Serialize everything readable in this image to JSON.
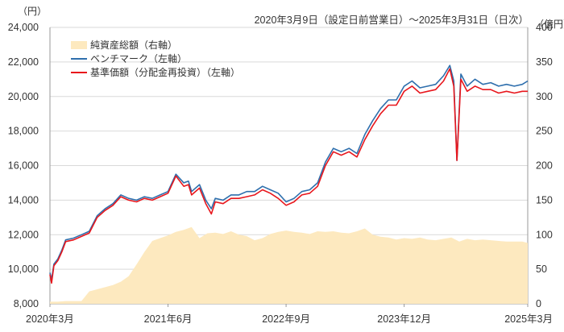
{
  "chart_data": {
    "type": "line",
    "title": "",
    "period_label": "2020年3月9日（設定日前営業日）～2025年3月31日（日次）",
    "left_axis": {
      "unit": "（円）",
      "ylim": [
        8000,
        24000
      ],
      "ticks": [
        8000,
        10000,
        12000,
        14000,
        16000,
        18000,
        20000,
        22000,
        24000
      ],
      "tick_labels": [
        "8,000",
        "10,000",
        "12,000",
        "14,000",
        "16,000",
        "18,000",
        "20,000",
        "22,000",
        "24,000"
      ]
    },
    "right_axis": {
      "unit": "（億円）",
      "ylim": [
        0,
        400
      ],
      "ticks": [
        0,
        50,
        100,
        150,
        200,
        250,
        300,
        350,
        400
      ],
      "tick_labels": [
        "0",
        "50",
        "100",
        "150",
        "200",
        "250",
        "300",
        "350",
        "400"
      ]
    },
    "x_ticks": [
      "2020年3月",
      "2021年6月",
      "2022年9月",
      "2023年12月",
      "2025年3月"
    ],
    "x_tick_positions": [
      0,
      15,
      30,
      45,
      60.7
    ],
    "xlim": [
      0,
      60.7
    ],
    "grid": true,
    "legend_position": "top-left",
    "series": [
      {
        "name": "純資産総額（右軸）",
        "kind": "area",
        "axis": "right",
        "color": "#fde9bf",
        "x": [
          0,
          1,
          2,
          3,
          4,
          5,
          6,
          7,
          8,
          9,
          10,
          11,
          12,
          13,
          14,
          15,
          16,
          17,
          18,
          19,
          20,
          21,
          22,
          23,
          24,
          25,
          26,
          27,
          28,
          29,
          30,
          31,
          32,
          33,
          34,
          35,
          36,
          37,
          38,
          39,
          40,
          41,
          42,
          43,
          44,
          45,
          46,
          47,
          48,
          49,
          50,
          51,
          52,
          53,
          54,
          55,
          56,
          57,
          58,
          59,
          60,
          60.7
        ],
        "values": [
          3,
          3,
          4,
          4,
          4,
          18,
          21,
          24,
          27,
          32,
          40,
          57,
          75,
          91,
          95,
          99,
          104,
          107,
          111,
          95,
          102,
          103,
          101,
          105,
          100,
          98,
          92,
          95,
          101,
          104,
          106,
          104,
          103,
          101,
          105,
          104,
          105,
          103,
          102,
          105,
          109,
          100,
          97,
          96,
          93,
          95,
          94,
          96,
          93,
          92,
          94,
          96,
          90,
          94,
          92,
          93,
          92,
          91,
          90,
          90,
          90,
          88
        ]
      },
      {
        "name": "ベンチマーク（左軸）",
        "kind": "line",
        "axis": "left",
        "color": "#2e6fad",
        "x": [
          0,
          0.2,
          0.5,
          1,
          1.5,
          2,
          3,
          4,
          5,
          6,
          7,
          8,
          9,
          10,
          11,
          12,
          13,
          14,
          15,
          16,
          17,
          17.6,
          18,
          19,
          19.8,
          20.5,
          21,
          22,
          23,
          24,
          25,
          26,
          27,
          28,
          29,
          30,
          31,
          32,
          33,
          34,
          35,
          36,
          37,
          38,
          39,
          40,
          41,
          42,
          43,
          44,
          45,
          46,
          47,
          48,
          49,
          50,
          50.8,
          51.3,
          51.7,
          52.2,
          53,
          54,
          55,
          56,
          57,
          58,
          59,
          60,
          60.7
        ],
        "values": [
          9800,
          9400,
          10300,
          10600,
          11100,
          11700,
          11800,
          12000,
          12200,
          13100,
          13500,
          13800,
          14300,
          14100,
          14000,
          14200,
          14100,
          14300,
          14500,
          15500,
          15000,
          15100,
          14500,
          14900,
          14000,
          13500,
          14100,
          14000,
          14300,
          14300,
          14500,
          14500,
          14800,
          14600,
          14400,
          13900,
          14100,
          14500,
          14600,
          15000,
          16200,
          17000,
          16800,
          17000,
          16700,
          17800,
          18600,
          19300,
          19800,
          19800,
          20600,
          20900,
          20500,
          20600,
          20700,
          21200,
          21800,
          20900,
          16300,
          21300,
          20600,
          21000,
          20700,
          20800,
          20600,
          20700,
          20600,
          20700,
          20900
        ]
      },
      {
        "name": "基準価額（分配金再投資）（左軸）",
        "kind": "line",
        "axis": "left",
        "color": "#e8161c",
        "x": [
          0,
          0.2,
          0.5,
          1,
          1.5,
          2,
          3,
          4,
          5,
          6,
          7,
          8,
          9,
          10,
          11,
          12,
          13,
          14,
          15,
          16,
          17,
          17.6,
          18,
          19,
          19.8,
          20.5,
          21,
          22,
          23,
          24,
          25,
          26,
          27,
          28,
          29,
          30,
          31,
          32,
          33,
          34,
          35,
          36,
          37,
          38,
          39,
          40,
          41,
          42,
          43,
          44,
          45,
          46,
          47,
          48,
          49,
          50,
          50.8,
          51.3,
          51.7,
          52.2,
          53,
          54,
          55,
          56,
          57,
          58,
          59,
          60,
          60.7
        ],
        "values": [
          9700,
          9200,
          10200,
          10500,
          11000,
          11600,
          11700,
          11900,
          12100,
          13000,
          13400,
          13700,
          14200,
          14000,
          13900,
          14100,
          14000,
          14200,
          14400,
          15400,
          14800,
          14900,
          14300,
          14700,
          13800,
          13200,
          13900,
          13800,
          14100,
          14100,
          14200,
          14300,
          14600,
          14400,
          14100,
          13700,
          13900,
          14300,
          14400,
          14800,
          16000,
          16800,
          16600,
          16800,
          16500,
          17500,
          18300,
          19000,
          19500,
          19500,
          20300,
          20600,
          20200,
          20300,
          20400,
          20900,
          21600,
          20600,
          16300,
          21000,
          20300,
          20600,
          20400,
          20400,
          20200,
          20300,
          20200,
          20300,
          20300
        ]
      }
    ]
  }
}
